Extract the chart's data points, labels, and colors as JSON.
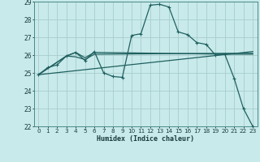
{
  "xlabel": "Humidex (Indice chaleur)",
  "xlim": [
    -0.5,
    23.5
  ],
  "ylim": [
    22,
    29
  ],
  "yticks": [
    22,
    23,
    24,
    25,
    26,
    27,
    28,
    29
  ],
  "xticks": [
    0,
    1,
    2,
    3,
    4,
    5,
    6,
    7,
    8,
    9,
    10,
    11,
    12,
    13,
    14,
    15,
    16,
    17,
    18,
    19,
    20,
    21,
    22,
    23
  ],
  "xtick_labels": [
    "0",
    "1",
    "2",
    "3",
    "4",
    "5",
    "6",
    "7",
    "8",
    "9",
    "10",
    "11",
    "12",
    "13",
    "14",
    "15",
    "16",
    "17",
    "18",
    "19",
    "20",
    "21",
    "22",
    "23"
  ],
  "bg_color": "#c8eaea",
  "grid_color": "#a8cccc",
  "line_color": "#206060",
  "line1": {
    "x": [
      0,
      1,
      2,
      3,
      4,
      5,
      6,
      7,
      8,
      9,
      10,
      11,
      12,
      13,
      14,
      15,
      16,
      17,
      18,
      19,
      20,
      21,
      22,
      23
    ],
    "y": [
      24.9,
      25.3,
      25.45,
      25.95,
      26.15,
      25.7,
      26.2,
      25.0,
      24.8,
      24.75,
      27.1,
      27.2,
      28.8,
      28.85,
      28.7,
      27.3,
      27.15,
      26.7,
      26.6,
      26.0,
      26.05,
      24.7,
      23.0,
      22.0
    ]
  },
  "line2": {
    "x": [
      0,
      3,
      4,
      5,
      6,
      20,
      23
    ],
    "y": [
      24.9,
      25.95,
      26.15,
      25.85,
      26.15,
      26.05,
      26.05
    ]
  },
  "line3": {
    "x": [
      0,
      3,
      4,
      5,
      6,
      20,
      23
    ],
    "y": [
      24.9,
      25.95,
      25.9,
      25.75,
      26.05,
      26.1,
      26.1
    ]
  },
  "line4": {
    "x": [
      0,
      23
    ],
    "y": [
      24.9,
      26.2
    ]
  }
}
